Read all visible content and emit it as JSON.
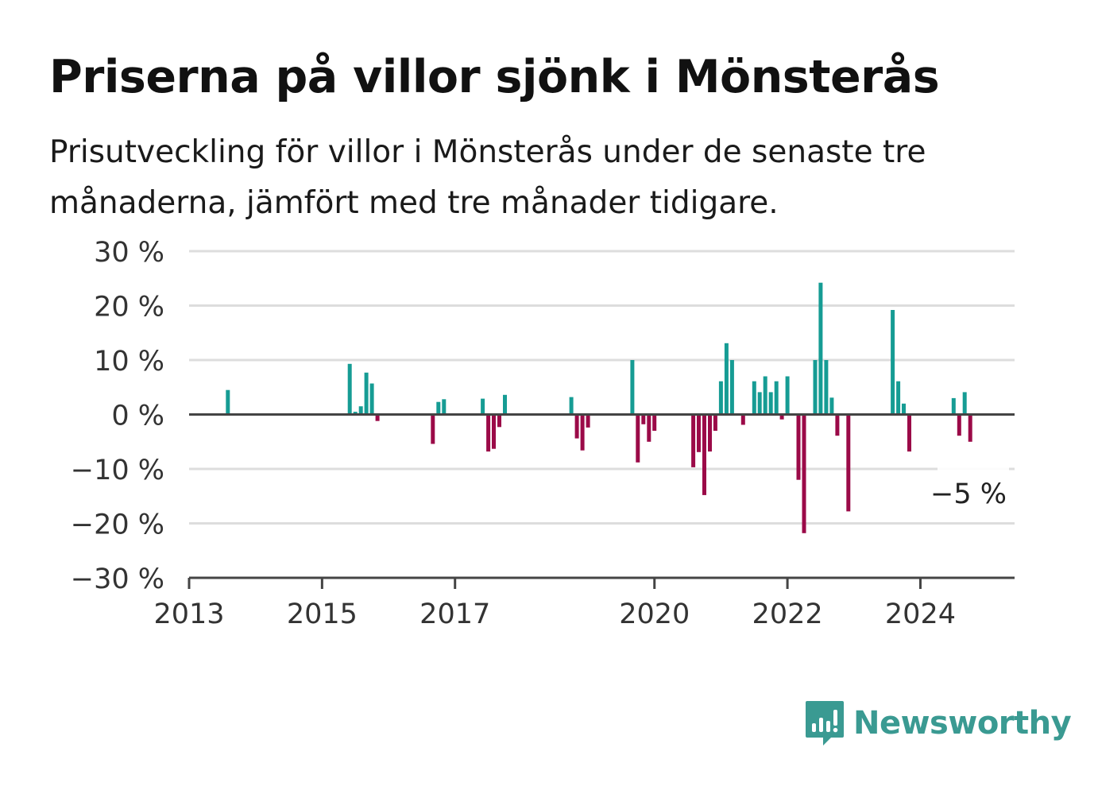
{
  "title": "Priserna på villor sjönk i Mönsterås",
  "subtitle": "Prisutveckling för villor i Mönsterås under de senaste tre månaderna, jämfört med tre månader tidigare.",
  "brand": {
    "name": "Newsworthy",
    "icon": "newsworthy-logo-icon",
    "color": "#3a9a92"
  },
  "colors": {
    "positive": "#169c94",
    "negative": "#9b0a48",
    "grid": "#dddddd",
    "axis": "#444444"
  },
  "chart_data": {
    "type": "bar",
    "title": "",
    "xlabel": "",
    "ylabel": "",
    "ylim": [
      -30,
      30
    ],
    "xlim": [
      "2013-01",
      "2025-06"
    ],
    "y_ticks": [
      30,
      20,
      10,
      0,
      -10,
      -20,
      -30
    ],
    "y_tick_labels": [
      "30 %",
      "20 %",
      "10 %",
      "0 %",
      "−10 %",
      "−20 %",
      "−30 %"
    ],
    "x_ticks": [
      "2013-01",
      "2015-01",
      "2017-01",
      "2020-01",
      "2022-01",
      "2024-01"
    ],
    "x_tick_labels": [
      "2013",
      "2015",
      "2017",
      "2020",
      "2022",
      "2024"
    ],
    "grid": true,
    "annotation": {
      "text": "−5 %",
      "month": "2025-04",
      "value": -5
    },
    "series": [
      {
        "points": [
          {
            "month": "2013-08",
            "value": 4.5
          },
          {
            "month": "2015-06",
            "value": 9.3
          },
          {
            "month": "2015-07",
            "value": 0.5
          },
          {
            "month": "2015-08",
            "value": 1.5
          },
          {
            "month": "2015-09",
            "value": 7.7
          },
          {
            "month": "2015-10",
            "value": 5.7
          },
          {
            "month": "2015-11",
            "value": -1.2
          },
          {
            "month": "2016-09",
            "value": -5.4
          },
          {
            "month": "2016-10",
            "value": 2.3
          },
          {
            "month": "2016-11",
            "value": 2.8
          },
          {
            "month": "2017-06",
            "value": 2.9
          },
          {
            "month": "2017-07",
            "value": -6.8
          },
          {
            "month": "2017-08",
            "value": -6.3
          },
          {
            "month": "2017-09",
            "value": -2.3
          },
          {
            "month": "2017-10",
            "value": 3.6
          },
          {
            "month": "2018-10",
            "value": 3.2
          },
          {
            "month": "2018-11",
            "value": -4.4
          },
          {
            "month": "2018-12",
            "value": -6.6
          },
          {
            "month": "2019-01",
            "value": -2.4
          },
          {
            "month": "2019-09",
            "value": 10.0
          },
          {
            "month": "2019-10",
            "value": -8.8
          },
          {
            "month": "2019-11",
            "value": -1.8
          },
          {
            "month": "2019-12",
            "value": -5.0
          },
          {
            "month": "2020-01",
            "value": -3.0
          },
          {
            "month": "2020-08",
            "value": -9.7
          },
          {
            "month": "2020-09",
            "value": -6.9
          },
          {
            "month": "2020-10",
            "value": -14.8
          },
          {
            "month": "2020-11",
            "value": -6.8
          },
          {
            "month": "2020-12",
            "value": -3.0
          },
          {
            "month": "2021-01",
            "value": 6.1
          },
          {
            "month": "2021-02",
            "value": 13.1
          },
          {
            "month": "2021-03",
            "value": 10.0
          },
          {
            "month": "2021-05",
            "value": -1.9
          },
          {
            "month": "2021-07",
            "value": 6.1
          },
          {
            "month": "2021-08",
            "value": 4.1
          },
          {
            "month": "2021-09",
            "value": 7.0
          },
          {
            "month": "2021-10",
            "value": 4.1
          },
          {
            "month": "2021-11",
            "value": 6.1
          },
          {
            "month": "2021-12",
            "value": -0.9
          },
          {
            "month": "2022-01",
            "value": 7.0
          },
          {
            "month": "2022-03",
            "value": -12.0
          },
          {
            "month": "2022-04",
            "value": -21.8
          },
          {
            "month": "2022-06",
            "value": 10.0
          },
          {
            "month": "2022-07",
            "value": 24.2
          },
          {
            "month": "2022-08",
            "value": 10.0
          },
          {
            "month": "2022-09",
            "value": 3.1
          },
          {
            "month": "2022-10",
            "value": -3.9
          },
          {
            "month": "2022-12",
            "value": -17.8
          },
          {
            "month": "2023-08",
            "value": 19.2
          },
          {
            "month": "2023-09",
            "value": 6.1
          },
          {
            "month": "2023-10",
            "value": 2.0
          },
          {
            "month": "2023-11",
            "value": -6.8
          },
          {
            "month": "2024-07",
            "value": 3.0
          },
          {
            "month": "2024-08",
            "value": -3.9
          },
          {
            "month": "2024-09",
            "value": 4.1
          },
          {
            "month": "2024-10",
            "value": -5.0
          }
        ]
      }
    ]
  }
}
